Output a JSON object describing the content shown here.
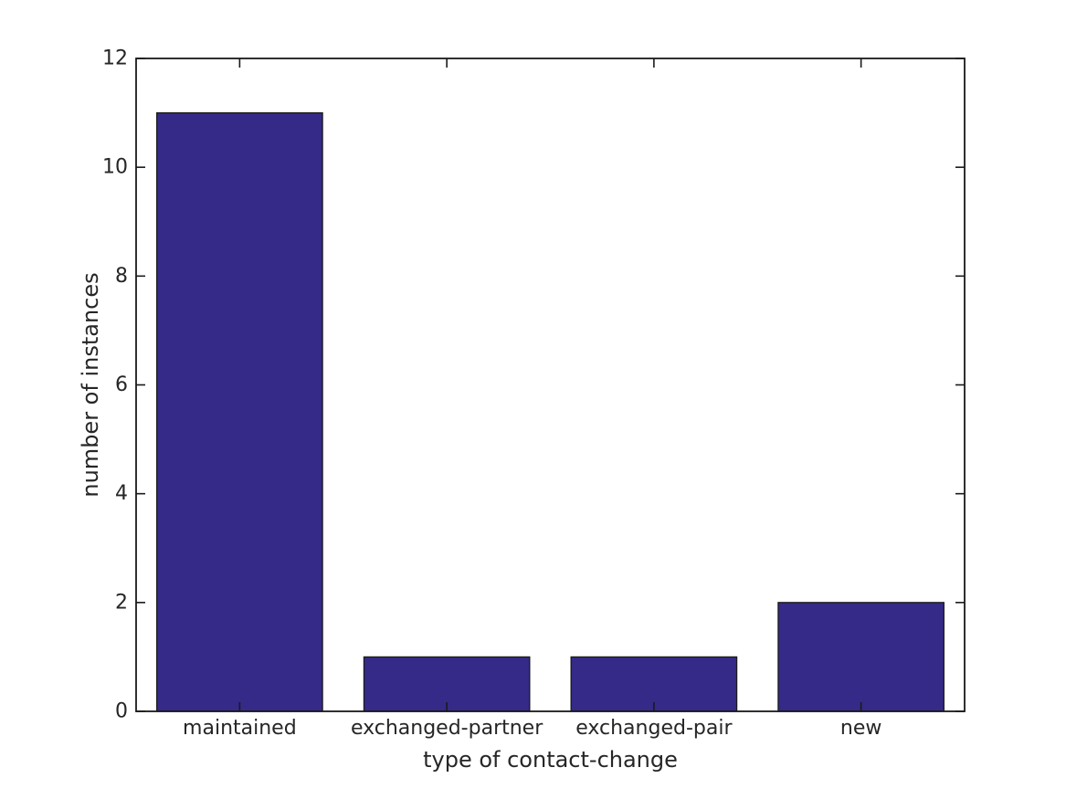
{
  "figure": {
    "background": "#ffffff"
  },
  "chart_data": {
    "type": "bar",
    "title": "",
    "categories": [
      "maintained",
      "exchanged-partner",
      "exchanged-pair",
      "new"
    ],
    "values": [
      11,
      1,
      1,
      2
    ],
    "xlabel": "type of contact-change",
    "ylabel": "number of instances",
    "ylim": [
      0,
      12
    ],
    "yticks": [
      0,
      2,
      4,
      6,
      8,
      10,
      12
    ],
    "bar_width_fraction": 0.8,
    "grid": false,
    "legend": null,
    "box": true,
    "tick_direction": "in",
    "colors": {
      "bar_fill": "#352a87",
      "bar_edge": "#1a1a1a",
      "axis": "#1a1a1a",
      "text": "#262626",
      "background": "#ffffff"
    }
  }
}
